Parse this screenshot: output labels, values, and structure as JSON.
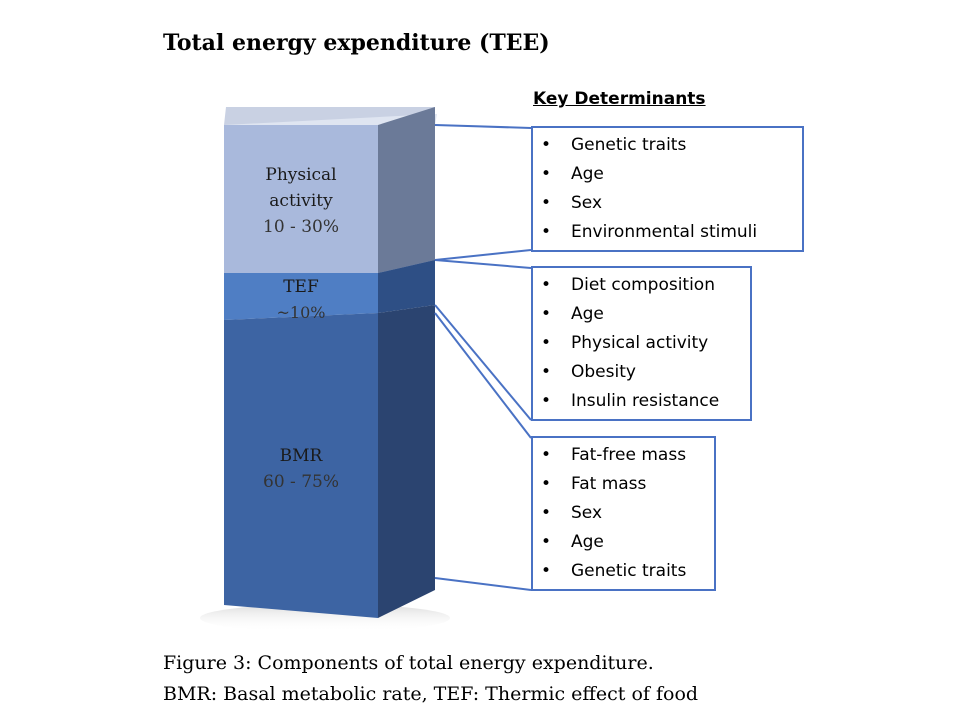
{
  "title": "Total energy expenditure (TEE)",
  "key_header": "Key Determinants",
  "segments": {
    "physical_activity": {
      "name_line1": "Physical",
      "name_line2": "activity",
      "pct": "10 - 30%",
      "color": "#a9b9dc"
    },
    "tef": {
      "name": "TEF",
      "pct": "~10%",
      "color": "#4f7ec4"
    },
    "bmr": {
      "name": "BMR",
      "pct": "60 - 75%",
      "color": "#3d64a3"
    }
  },
  "determinants": {
    "physical_activity": [
      "Genetic traits",
      "Age",
      "Sex",
      "Environmental  stimuli"
    ],
    "tef": [
      "Diet composition",
      "Age",
      "Physical activity",
      "Obesity",
      "Insulin resistance"
    ],
    "bmr": [
      "Fat-free mass",
      "Fat mass",
      "Sex",
      "Age",
      "Genetic traits"
    ]
  },
  "caption": {
    "line1": "Figure 3: Components of total energy expenditure.",
    "line2": "BMR: Basal metabolic rate, TEF: Thermic effect of food"
  },
  "colors": {
    "box_border": "#4a72c4",
    "connector": "#4a72c4"
  }
}
